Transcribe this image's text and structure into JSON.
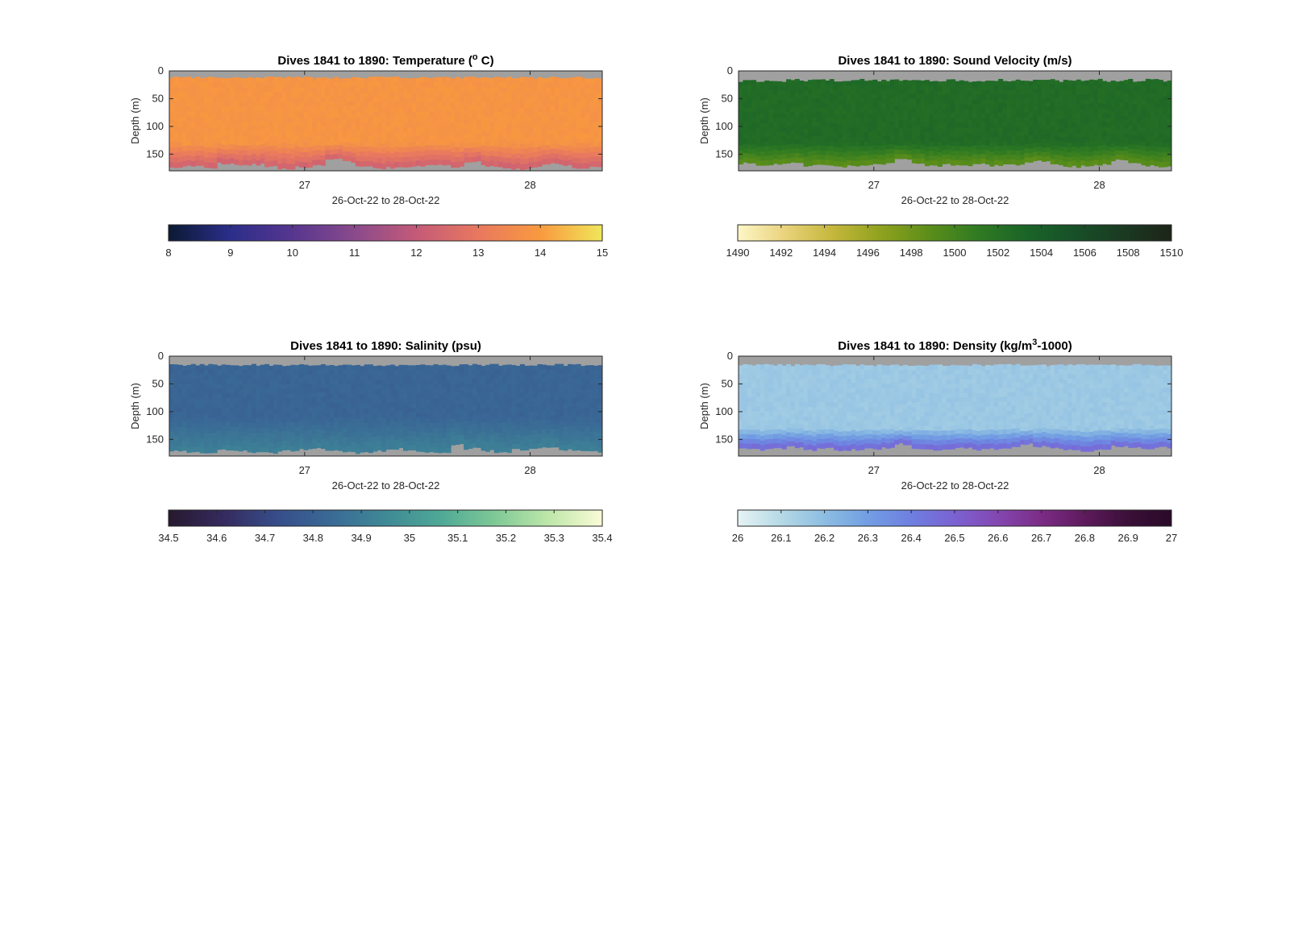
{
  "chart_data": [
    {
      "type": "heatmap",
      "title_parts": [
        {
          "text": "Dives 1841 to 1890: Temperature ("
        },
        {
          "text": "o",
          "sup": true
        },
        {
          "text": " C)"
        }
      ],
      "xlabel": "26-Oct-22 to 28-Oct-22",
      "ylabel": "Depth (m)",
      "x_ticks": [
        "27",
        "28"
      ],
      "x_tick_values": [
        27,
        28
      ],
      "xlim": [
        26.4,
        28.32
      ],
      "y_ticks": [
        "0",
        "50",
        "100",
        "150"
      ],
      "y_tick_values": [
        0,
        50,
        100,
        150
      ],
      "ylim": [
        0,
        180
      ],
      "y_reversed": true,
      "no_data_color": "#a0a0a0",
      "colorbar": {
        "ticks": [
          "8",
          "9",
          "10",
          "11",
          "12",
          "13",
          "14",
          "15"
        ],
        "range": [
          8,
          15
        ],
        "colors": [
          "#0b1a33",
          "#2b2e8a",
          "#56368f",
          "#8a4a8c",
          "#c45a78",
          "#e8785f",
          "#f89a3f",
          "#f0e65a"
        ]
      },
      "field": {
        "surface_gap_m": [
          10,
          14
        ],
        "bottom_depth_m": [
          175,
          172,
          176,
          168,
          172,
          170,
          174,
          178,
          175,
          172,
          160,
          165,
          175,
          177,
          176,
          174,
          172,
          170,
          174,
          165,
          172,
          176,
          178,
          175,
          168,
          172,
          177,
          175
        ],
        "main_value": 13.85,
        "deep_value": 12.2,
        "deep_start_m": 130
      }
    },
    {
      "type": "heatmap",
      "title_parts": [
        {
          "text": "Dives 1841 to 1890: Sound Velocity (m/s)"
        }
      ],
      "xlabel": "26-Oct-22 to 28-Oct-22",
      "ylabel": "Depth (m)",
      "x_ticks": [
        "27",
        "28"
      ],
      "x_tick_values": [
        27,
        28
      ],
      "xlim": [
        26.4,
        28.32
      ],
      "y_ticks": [
        "0",
        "50",
        "100",
        "150"
      ],
      "y_tick_values": [
        0,
        50,
        100,
        150
      ],
      "ylim": [
        0,
        180
      ],
      "y_reversed": true,
      "no_data_color": "#a0a0a0",
      "colorbar": {
        "ticks": [
          "1490",
          "1492",
          "1494",
          "1496",
          "1498",
          "1500",
          "1502",
          "1504",
          "1506",
          "1508",
          "1510"
        ],
        "range": [
          1490,
          1510
        ],
        "colors": [
          "#fdf6c8",
          "#e9d27a",
          "#c3b63a",
          "#8ea11e",
          "#5a8d1a",
          "#2f7a22",
          "#1a6428",
          "#175028",
          "#1b3a22",
          "#1c2418"
        ]
      },
      "field": {
        "surface_gap_m": [
          14,
          20
        ],
        "bottom_depth_m": [
          168,
          172,
          170,
          166,
          172,
          170,
          174,
          172,
          170,
          168,
          160,
          168,
          172,
          170,
          172,
          168,
          172,
          170,
          168,
          164,
          170,
          174,
          172,
          170,
          162,
          168,
          172,
          174
        ],
        "main_value": 1502.6,
        "deep_value": 1498.5,
        "deep_start_m": 130
      }
    },
    {
      "type": "heatmap",
      "title_parts": [
        {
          "text": "Dives 1841 to 1890: Salinity (psu)"
        }
      ],
      "xlabel": "26-Oct-22 to 28-Oct-22",
      "ylabel": "Depth (m)",
      "x_ticks": [
        "27",
        "28"
      ],
      "x_tick_values": [
        27,
        28
      ],
      "xlim": [
        26.4,
        28.32
      ],
      "y_ticks": [
        "0",
        "50",
        "100",
        "150"
      ],
      "y_tick_values": [
        0,
        50,
        100,
        150
      ],
      "ylim": [
        0,
        180
      ],
      "y_reversed": true,
      "no_data_color": "#a0a0a0",
      "colorbar": {
        "ticks": [
          "34.5",
          "34.6",
          "34.7",
          "34.8",
          "34.9",
          "35",
          "35.1",
          "35.2",
          "35.3",
          "35.4"
        ],
        "range": [
          34.5,
          35.4
        ],
        "colors": [
          "#26192e",
          "#352a5e",
          "#364d8a",
          "#3a6a96",
          "#3f8996",
          "#4ea896",
          "#7ec896",
          "#bde7a9",
          "#fbfbd6"
        ]
      },
      "field": {
        "surface_gap_m": [
          14,
          18
        ],
        "bottom_depth_m": [
          172,
          174,
          176,
          170,
          172,
          174,
          176,
          172,
          170,
          168,
          170,
          174,
          176,
          172,
          168,
          172,
          174,
          176,
          160,
          168,
          172,
          174,
          170,
          168,
          166,
          170,
          172,
          174
        ],
        "main_value": 34.82,
        "deep_value": 34.92,
        "deep_start_m": 110
      }
    },
    {
      "type": "heatmap",
      "title_parts": [
        {
          "text": "Dives 1841 to 1890: Density (kg/m"
        },
        {
          "text": "3",
          "sup": true
        },
        {
          "text": "-1000)"
        }
      ],
      "xlabel": "26-Oct-22 to 28-Oct-22",
      "ylabel": "Depth (m)",
      "x_ticks": [
        "27",
        "28"
      ],
      "x_tick_values": [
        27,
        28
      ],
      "xlim": [
        26.4,
        28.32
      ],
      "y_ticks": [
        "0",
        "50",
        "100",
        "150"
      ],
      "y_tick_values": [
        0,
        50,
        100,
        150
      ],
      "ylim": [
        0,
        180
      ],
      "y_reversed": true,
      "no_data_color": "#a0a0a0",
      "colorbar": {
        "ticks": [
          "26",
          "26.1",
          "26.2",
          "26.3",
          "26.4",
          "26.5",
          "26.6",
          "26.7",
          "26.8",
          "26.9",
          "27"
        ],
        "range": [
          26,
          27
        ],
        "colors": [
          "#e6f3f4",
          "#b5d9e6",
          "#8cbde2",
          "#729ee3",
          "#6e7fe0",
          "#7b62d2",
          "#8447b0",
          "#7b2c86",
          "#5e1a5c",
          "#3a0f38",
          "#2a0a28"
        ]
      },
      "field": {
        "surface_gap_m": [
          14,
          18
        ],
        "bottom_depth_m": [
          168,
          170,
          168,
          165,
          170,
          168,
          172,
          170,
          168,
          166,
          160,
          168,
          170,
          168,
          166,
          170,
          168,
          166,
          160,
          164,
          168,
          170,
          172,
          168,
          164,
          166,
          168,
          166
        ],
        "main_value": 26.16,
        "deep_value": 26.5,
        "deep_start_m": 130
      }
    }
  ]
}
